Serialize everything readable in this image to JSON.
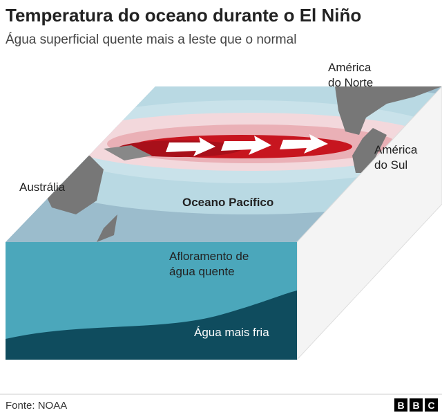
{
  "header": {
    "title": "Temperatura do oceano durante o El Niño",
    "subtitle": "Água superficial quente mais a leste que o normal"
  },
  "labels": {
    "north_america": [
      "América",
      "do Norte"
    ],
    "south_america": [
      "América",
      "do Sul"
    ],
    "australia": "Austrália",
    "pacific": "Oceano Pacífico",
    "upwelling": [
      "Afloramento de",
      "água quente"
    ],
    "cold_water": "Água mais fria"
  },
  "footer": {
    "source": "Fonte: NOAA",
    "logo": [
      "B",
      "B",
      "C"
    ]
  }
}
